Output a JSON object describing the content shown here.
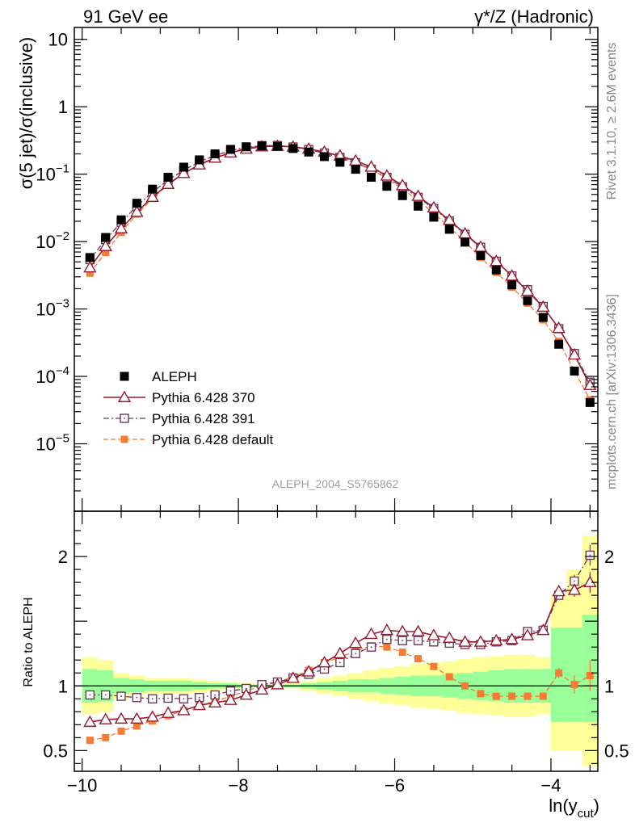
{
  "header": {
    "left": "91 GeV ee",
    "right": "γ*/Z (Hadronic)"
  },
  "side_labels": {
    "rivet": "Rivet 3.1.10, ≥ 2.6M events",
    "mcplots": "mcplots.cern.ch [arXiv:1306.3436]"
  },
  "watermark": "ALEPH_2004_S5765862",
  "axes": {
    "main_ylabel": "σ(5 jet)/σ(inclusive)",
    "ratio_ylabel": "Ratio to ALEPH",
    "xlabel_main": "ln(y",
    "xlabel_sub": "cut",
    "xlabel_close": ")",
    "main_ticks": [
      {
        "v": 10,
        "label": "10"
      },
      {
        "v": 1,
        "label": "1"
      },
      {
        "v": 0.1,
        "base": "10",
        "exp": "−1"
      },
      {
        "v": 0.01,
        "base": "10",
        "exp": "−2"
      },
      {
        "v": 0.001,
        "base": "10",
        "exp": "−3"
      },
      {
        "v": 0.0001,
        "base": "10",
        "exp": "−4"
      },
      {
        "v": 1e-05,
        "base": "10",
        "exp": "−5"
      }
    ],
    "x_ticks": [
      {
        "v": -10,
        "label": "−10"
      },
      {
        "v": -8,
        "label": "−8"
      },
      {
        "v": -6,
        "label": "−6"
      },
      {
        "v": -4,
        "label": "−4"
      }
    ],
    "ratio_ticks": [
      {
        "v": 2,
        "label": "2"
      },
      {
        "v": 1,
        "label": "1"
      },
      {
        "v": 0.5,
        "label": "0.5"
      }
    ]
  },
  "legend": [
    {
      "label": "ALEPH",
      "key": "aleph"
    },
    {
      "label": "Pythia 6.428 370",
      "key": "p370"
    },
    {
      "label": "Pythia 6.428 391",
      "key": "p391"
    },
    {
      "label": "Pythia 6.428 default",
      "key": "pdef"
    }
  ],
  "colors": {
    "aleph": "#000000",
    "p370": "#991a33",
    "p391": "#6b3a5a",
    "pdef": "#f57c32",
    "band_inner": "#99ff99",
    "band_outer": "#ffff99"
  },
  "chart_data": {
    "type": "scatter",
    "title": "91 GeV ee — γ*/Z (Hadronic)",
    "xlabel": "ln(y_cut)",
    "ylabel": "σ(5 jet)/σ(inclusive)",
    "xlim": [
      -10.1,
      -3.4
    ],
    "ylim": [
      1e-06,
      15
    ],
    "yscale": "log",
    "ratio_ylim": [
      0.34,
      2.35
    ],
    "x": [
      -9.9,
      -9.7,
      -9.5,
      -9.3,
      -9.1,
      -8.9,
      -8.7,
      -8.5,
      -8.3,
      -8.1,
      -7.9,
      -7.7,
      -7.5,
      -7.3,
      -7.1,
      -6.9,
      -6.7,
      -6.5,
      -6.3,
      -6.1,
      -5.9,
      -5.7,
      -5.5,
      -5.3,
      -5.1,
      -4.9,
      -4.7,
      -4.5,
      -4.3,
      -4.1,
      -3.9,
      -3.7,
      -3.5
    ],
    "series": [
      {
        "name": "ALEPH",
        "key": "aleph",
        "values": [
          0.0058,
          0.0115,
          0.021,
          0.037,
          0.06,
          0.09,
          0.127,
          0.163,
          0.2,
          0.233,
          0.255,
          0.263,
          0.258,
          0.24,
          0.213,
          0.182,
          0.15,
          0.118,
          0.09,
          0.066,
          0.048,
          0.0335,
          0.023,
          0.0152,
          0.0098,
          0.0062,
          0.0038,
          0.00228,
          0.00133,
          0.00075,
          0.0003,
          0.00012,
          4.1e-05
        ]
      },
      {
        "name": "Pythia 6.428 370",
        "key": "p370",
        "values": [
          0.0041,
          0.0085,
          0.0156,
          0.0274,
          0.0456,
          0.0711,
          0.103,
          0.138,
          0.174,
          0.208,
          0.237,
          0.256,
          0.261,
          0.254,
          0.237,
          0.214,
          0.187,
          0.158,
          0.128,
          0.0945,
          0.0682,
          0.0472,
          0.0319,
          0.0208,
          0.0131,
          0.0083,
          0.0051,
          0.0031,
          0.00185,
          0.00107,
          0.00052,
          0.000209,
          7.4e-05
        ]
      },
      {
        "name": "Pythia 6.428 391",
        "key": "p391",
        "values": [
          0.0054,
          0.0107,
          0.0193,
          0.0335,
          0.0542,
          0.0815,
          0.115,
          0.152,
          0.189,
          0.224,
          0.25,
          0.265,
          0.266,
          0.253,
          0.231,
          0.205,
          0.177,
          0.147,
          0.118,
          0.0897,
          0.0648,
          0.0452,
          0.0308,
          0.0202,
          0.0128,
          0.0082,
          0.0051,
          0.0031,
          0.00193,
          0.00109,
          0.00051,
          0.000219,
          8.2e-05
        ]
      },
      {
        "name": "Pythia 6.428 default",
        "key": "pdef",
        "values": [
          0.0034,
          0.0069,
          0.0137,
          0.0255,
          0.0437,
          0.0693,
          0.102,
          0.139,
          0.177,
          0.214,
          0.245,
          0.263,
          0.265,
          0.257,
          0.239,
          0.214,
          0.183,
          0.15,
          0.118,
          0.0857,
          0.0605,
          0.0405,
          0.0264,
          0.0163,
          0.0099,
          0.0058,
          0.0035,
          0.0021,
          0.00122,
          0.00069,
          0.00033,
          0.000121,
          4.5e-05
        ]
      }
    ],
    "ratio_series": [
      {
        "name": "Pythia 6.428 370",
        "key": "p370",
        "values": [
          0.72,
          0.74,
          0.745,
          0.745,
          0.76,
          0.79,
          0.81,
          0.85,
          0.87,
          0.89,
          0.93,
          0.97,
          1.01,
          1.06,
          1.11,
          1.18,
          1.25,
          1.33,
          1.4,
          1.43,
          1.42,
          1.42,
          1.39,
          1.37,
          1.34,
          1.34,
          1.35,
          1.36,
          1.39,
          1.43,
          1.73,
          1.74,
          1.8
        ],
        "errors": [
          0.01,
          0.01,
          0.01,
          0.01,
          0.01,
          0.01,
          0.01,
          0.01,
          0.01,
          0.01,
          0.01,
          0.01,
          0.01,
          0.01,
          0.01,
          0.01,
          0.01,
          0.01,
          0.01,
          0.01,
          0.01,
          0.01,
          0.01,
          0.01,
          0.01,
          0.01,
          0.01,
          0.01,
          0.01,
          0.02,
          0.03,
          0.05,
          0.08
        ]
      },
      {
        "name": "Pythia 6.428 391",
        "key": "p391",
        "values": [
          0.93,
          0.93,
          0.92,
          0.91,
          0.9,
          0.905,
          0.9,
          0.91,
          0.93,
          0.96,
          0.98,
          1.01,
          1.03,
          1.06,
          1.09,
          1.13,
          1.18,
          1.25,
          1.3,
          1.36,
          1.35,
          1.35,
          1.34,
          1.33,
          1.32,
          1.32,
          1.34,
          1.35,
          1.42,
          1.43,
          1.7,
          1.81,
          2.01
        ],
        "errors": [
          0.01,
          0.01,
          0.01,
          0.01,
          0.01,
          0.01,
          0.01,
          0.01,
          0.01,
          0.01,
          0.01,
          0.01,
          0.01,
          0.01,
          0.01,
          0.01,
          0.01,
          0.01,
          0.01,
          0.01,
          0.01,
          0.01,
          0.01,
          0.01,
          0.01,
          0.01,
          0.01,
          0.01,
          0.01,
          0.02,
          0.03,
          0.05,
          0.08
        ]
      },
      {
        "name": "Pythia 6.428 default",
        "key": "pdef",
        "values": [
          0.58,
          0.6,
          0.65,
          0.69,
          0.73,
          0.77,
          0.81,
          0.85,
          0.88,
          0.92,
          0.96,
          1.0,
          1.03,
          1.07,
          1.12,
          1.18,
          1.22,
          1.27,
          1.31,
          1.3,
          1.26,
          1.21,
          1.15,
          1.07,
          1.0,
          0.94,
          0.92,
          0.92,
          0.92,
          0.92,
          1.1,
          1.01,
          1.08
        ],
        "errors": [
          0.01,
          0.01,
          0.01,
          0.01,
          0.01,
          0.01,
          0.01,
          0.01,
          0.01,
          0.01,
          0.01,
          0.01,
          0.01,
          0.01,
          0.01,
          0.01,
          0.01,
          0.01,
          0.01,
          0.01,
          0.01,
          0.01,
          0.01,
          0.01,
          0.01,
          0.01,
          0.01,
          0.01,
          0.01,
          0.02,
          0.04,
          0.07,
          0.12
        ]
      }
    ],
    "uncertainty_bands": {
      "inner_low": [
        0.87,
        0.88,
        0.94,
        0.95,
        0.96,
        0.96,
        0.96,
        0.97,
        0.98,
        0.98,
        0.99,
        0.99,
        0.99,
        0.99,
        0.98,
        0.97,
        0.96,
        0.95,
        0.95,
        0.94,
        0.93,
        0.92,
        0.92,
        0.91,
        0.9,
        0.89,
        0.88,
        0.87,
        0.87,
        0.87,
        0.72,
        0.72,
        0.72
      ],
      "inner_high": [
        1.13,
        1.12,
        1.06,
        1.05,
        1.04,
        1.04,
        1.04,
        1.03,
        1.02,
        1.02,
        1.01,
        1.01,
        1.01,
        1.01,
        1.02,
        1.03,
        1.04,
        1.05,
        1.05,
        1.06,
        1.07,
        1.08,
        1.08,
        1.09,
        1.1,
        1.11,
        1.12,
        1.13,
        1.13,
        1.13,
        1.45,
        1.45,
        1.55
      ],
      "outer_low": [
        0.78,
        0.8,
        0.9,
        0.92,
        0.94,
        0.94,
        0.94,
        0.95,
        0.96,
        0.97,
        0.98,
        0.99,
        0.99,
        0.98,
        0.96,
        0.94,
        0.92,
        0.9,
        0.88,
        0.86,
        0.85,
        0.83,
        0.82,
        0.81,
        0.79,
        0.78,
        0.77,
        0.76,
        0.76,
        0.78,
        0.5,
        0.5,
        0.38
      ],
      "outer_high": [
        1.22,
        1.2,
        1.1,
        1.08,
        1.06,
        1.06,
        1.06,
        1.05,
        1.04,
        1.03,
        1.02,
        1.01,
        1.01,
        1.02,
        1.04,
        1.06,
        1.08,
        1.1,
        1.12,
        1.14,
        1.15,
        1.17,
        1.18,
        1.19,
        1.21,
        1.22,
        1.23,
        1.24,
        1.24,
        1.22,
        1.7,
        1.9,
        2.16
      ]
    }
  }
}
